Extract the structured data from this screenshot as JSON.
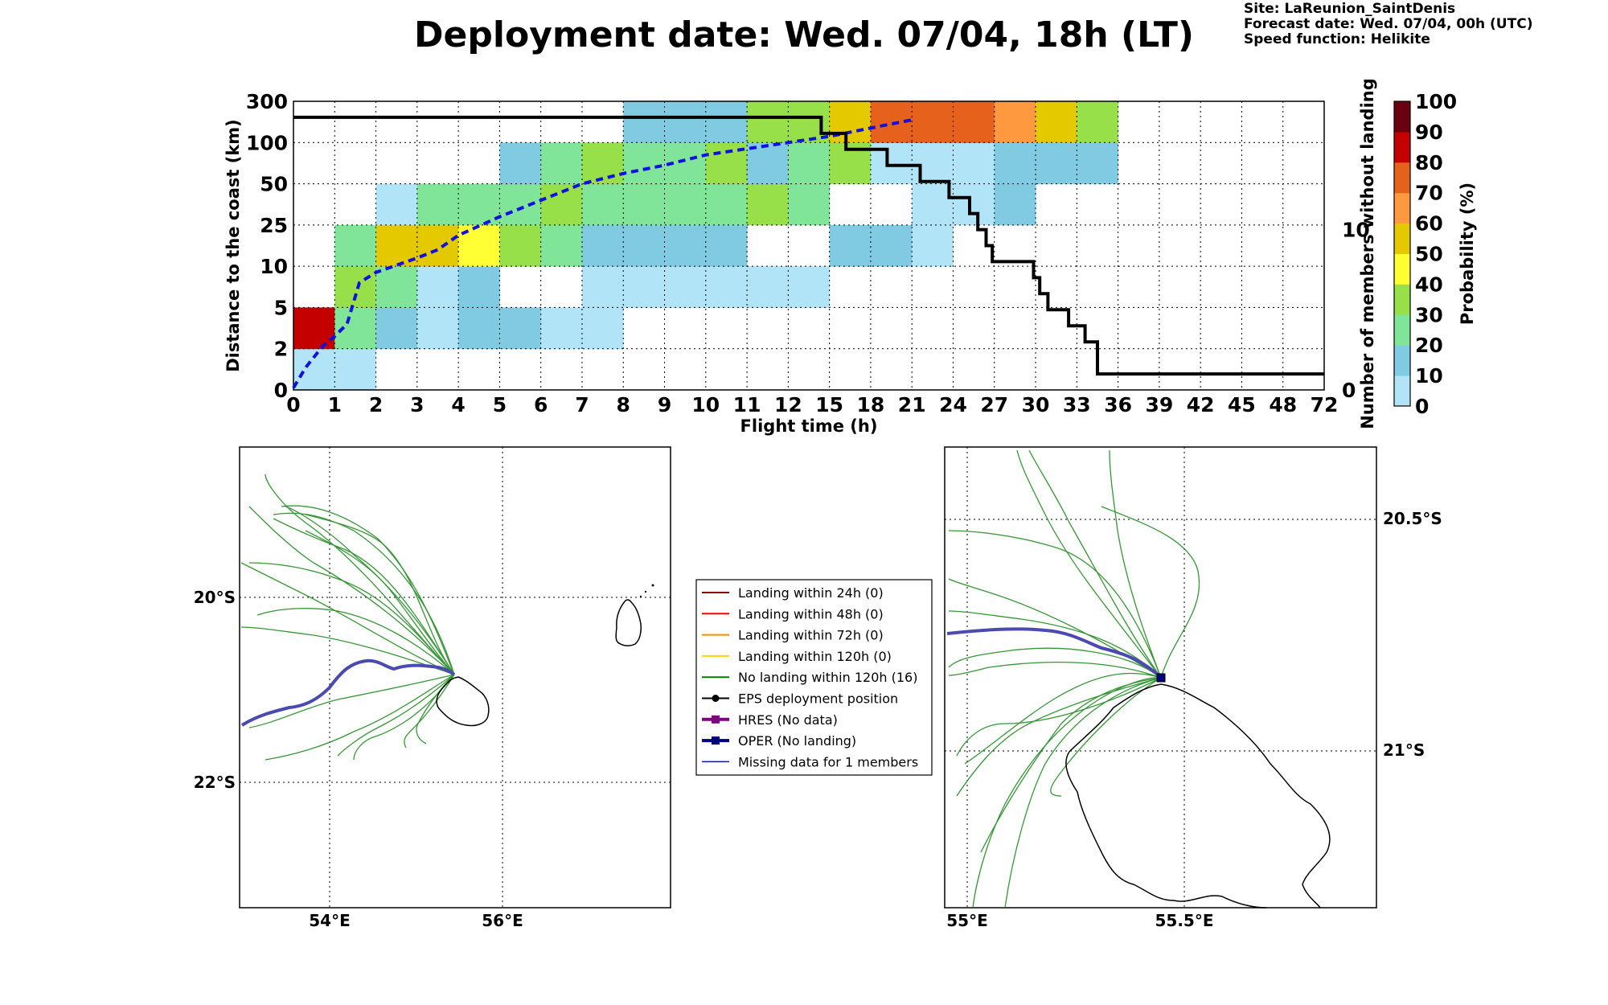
{
  "title": "Deployment date: Wed. 07/04, 18h (LT)",
  "meta": {
    "site": "Site: LaReunion_SaintDenis",
    "forecast": "Forecast date: Wed. 07/04, 00h (UTC)",
    "speed": "Speed function: Helikite"
  },
  "chart_data": {
    "type": "heatmap",
    "xlabel": "Flight time (h)",
    "ylabel": "Distance to the coast (km)",
    "y2label": "Number of members without landing",
    "colorbar_label": "Probability (%)",
    "x_ticks": [
      "0",
      "1",
      "2",
      "3",
      "4",
      "5",
      "6",
      "7",
      "8",
      "9",
      "10",
      "11",
      "12",
      "15",
      "18",
      "21",
      "24",
      "27",
      "30",
      "33",
      "36",
      "39",
      "42",
      "45",
      "48",
      "72"
    ],
    "y_ticks": [
      "0",
      "2",
      "5",
      "10",
      "25",
      "50",
      "100",
      "300"
    ],
    "y2_ticks": [
      "0",
      "10"
    ],
    "y2_lim": [
      0,
      18
    ],
    "colorbar": {
      "ticks": [
        "0",
        "10",
        "20",
        "30",
        "40",
        "50",
        "60",
        "70",
        "80",
        "90",
        "100"
      ],
      "colors": [
        "#b2e4f8",
        "#80cbe2",
        "#80e499",
        "#98e049",
        "#ffff33",
        "#e4c800",
        "#ff9940",
        "#e5611c",
        "#c50000",
        "#6b0010"
      ]
    },
    "grid": true,
    "cells": [
      [
        0,
        0,
        0
      ],
      [
        1,
        0,
        0
      ],
      [
        0,
        1,
        8
      ],
      [
        1,
        1,
        2
      ],
      [
        2,
        1,
        1
      ],
      [
        3,
        1,
        0
      ],
      [
        4,
        1,
        1
      ],
      [
        5,
        1,
        1
      ],
      [
        6,
        1,
        0
      ],
      [
        7,
        1,
        0
      ],
      [
        1,
        2,
        3
      ],
      [
        2,
        2,
        2
      ],
      [
        3,
        2,
        0
      ],
      [
        4,
        2,
        1
      ],
      [
        7,
        2,
        0
      ],
      [
        8,
        2,
        0
      ],
      [
        9,
        2,
        0
      ],
      [
        10,
        2,
        0
      ],
      [
        11,
        2,
        0
      ],
      [
        12,
        2,
        0
      ],
      [
        1,
        3,
        2
      ],
      [
        2,
        3,
        5
      ],
      [
        3,
        3,
        5
      ],
      [
        4,
        3,
        4
      ],
      [
        5,
        3,
        3
      ],
      [
        6,
        3,
        2
      ],
      [
        7,
        3,
        1
      ],
      [
        8,
        3,
        1
      ],
      [
        9,
        3,
        1
      ],
      [
        10,
        3,
        1
      ],
      [
        13,
        3,
        1
      ],
      [
        14,
        3,
        1
      ],
      [
        15,
        3,
        0
      ],
      [
        2,
        4,
        0
      ],
      [
        3,
        4,
        2
      ],
      [
        4,
        4,
        2
      ],
      [
        5,
        4,
        2
      ],
      [
        6,
        4,
        3
      ],
      [
        7,
        4,
        2
      ],
      [
        8,
        4,
        2
      ],
      [
        9,
        4,
        2
      ],
      [
        10,
        4,
        2
      ],
      [
        11,
        4,
        3
      ],
      [
        12,
        4,
        2
      ],
      [
        15,
        4,
        0
      ],
      [
        16,
        4,
        0
      ],
      [
        17,
        4,
        1
      ],
      [
        5,
        5,
        1
      ],
      [
        6,
        5,
        2
      ],
      [
        7,
        5,
        3
      ],
      [
        8,
        5,
        2
      ],
      [
        9,
        5,
        2
      ],
      [
        10,
        5,
        3
      ],
      [
        11,
        5,
        1
      ],
      [
        12,
        5,
        2
      ],
      [
        13,
        5,
        3
      ],
      [
        14,
        5,
        0
      ],
      [
        15,
        5,
        0
      ],
      [
        16,
        5,
        0
      ],
      [
        17,
        5,
        1
      ],
      [
        18,
        5,
        1
      ],
      [
        19,
        5,
        1
      ],
      [
        8,
        6,
        1
      ],
      [
        9,
        6,
        1
      ],
      [
        10,
        6,
        1
      ],
      [
        11,
        6,
        3
      ],
      [
        12,
        6,
        3
      ],
      [
        13,
        6,
        5
      ],
      [
        14,
        6,
        7
      ],
      [
        15,
        6,
        7
      ],
      [
        16,
        6,
        7
      ],
      [
        17,
        6,
        6
      ],
      [
        18,
        6,
        5
      ],
      [
        19,
        6,
        3
      ]
    ],
    "series": [
      {
        "style": "dashed-blue",
        "points": [
          [
            0,
            0.05
          ],
          [
            0.3,
            0.55
          ],
          [
            0.7,
            1.05
          ],
          [
            1,
            1.3
          ],
          [
            1.3,
            1.6
          ],
          [
            1.6,
            2.6
          ],
          [
            2,
            2.85
          ],
          [
            3,
            3.2
          ],
          [
            3.5,
            3.4
          ],
          [
            4,
            3.75
          ],
          [
            5,
            4.2
          ],
          [
            6,
            4.6
          ],
          [
            7,
            5.0
          ],
          [
            8,
            5.25
          ],
          [
            9,
            5.45
          ],
          [
            10,
            5.7
          ],
          [
            11,
            5.85
          ],
          [
            12,
            6.0
          ],
          [
            13,
            6.15
          ],
          [
            14,
            6.35
          ],
          [
            15,
            6.55
          ]
        ]
      },
      {
        "style": "step-black",
        "members": [
          [
            0,
            17
          ],
          [
            12.8,
            17
          ],
          [
            12.8,
            16
          ],
          [
            13.4,
            16
          ],
          [
            13.4,
            15
          ],
          [
            14.4,
            15
          ],
          [
            14.4,
            14
          ],
          [
            15.2,
            14
          ],
          [
            15.2,
            13
          ],
          [
            15.9,
            13
          ],
          [
            15.9,
            12
          ],
          [
            16.4,
            12
          ],
          [
            16.4,
            11
          ],
          [
            16.6,
            11
          ],
          [
            16.6,
            10
          ],
          [
            16.8,
            10
          ],
          [
            16.8,
            9
          ],
          [
            16.95,
            9
          ],
          [
            16.95,
            8
          ],
          [
            17.95,
            8
          ],
          [
            17.95,
            7
          ],
          [
            18.1,
            7
          ],
          [
            18.1,
            6
          ],
          [
            18.3,
            6
          ],
          [
            18.3,
            5
          ],
          [
            18.8,
            5
          ],
          [
            18.8,
            4
          ],
          [
            19.2,
            4
          ],
          [
            19.2,
            3
          ],
          [
            19.5,
            3
          ],
          [
            19.5,
            1
          ],
          [
            25,
            1
          ]
        ]
      }
    ]
  },
  "maps": {
    "left": {
      "lat_labels": [
        "20°S",
        "22°S"
      ],
      "lon_labels": [
        "54°E",
        "56°E"
      ]
    },
    "right": {
      "lat_labels": [
        "20.5°S",
        "21°S"
      ],
      "lon_labels": [
        "55°E",
        "55.5°E"
      ]
    }
  },
  "legend": {
    "items": [
      {
        "label": "Landing within 24h (0)",
        "color": "#8b0000"
      },
      {
        "label": "Landing within 48h (0)",
        "color": "#ff0000"
      },
      {
        "label": "Landing within 72h (0)",
        "color": "#ff8c00"
      },
      {
        "label": "Landing within 120h (0)",
        "color": "#ffd700"
      },
      {
        "label": "No landing within 120h (16)",
        "color": "#008000"
      },
      {
        "label": "EPS deployment position",
        "color": "#000000"
      },
      {
        "label": "HRES (No data)",
        "color": "#800080"
      },
      {
        "label": "OPER (No landing)",
        "color": "#000080"
      },
      {
        "label": "Missing data for 1 members",
        "color": "#0000ff"
      }
    ]
  }
}
